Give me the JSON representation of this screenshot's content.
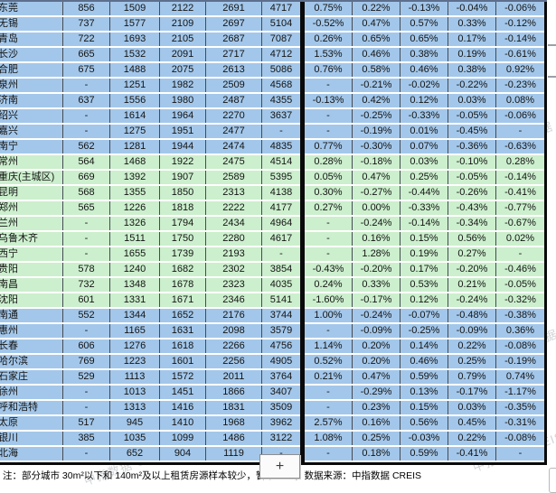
{
  "colors": {
    "row_blue": "#a3c7ea",
    "row_green": "#ccefcd",
    "section_border": "#0a0a0a",
    "gridline": "#454b54"
  },
  "watermark": {
    "text": "中指数据 CREIS"
  },
  "controls": {
    "zoom_in_label": "+"
  },
  "note": {
    "prefix": "注：部分城市 30m²以下和 140m²及以上租赁房源样本较少，暂不",
    "suffix": "，数据来源：中指数据 CREIS"
  },
  "table": {
    "rows": [
      {
        "city": "东莞",
        "group": "blue",
        "values": [
          "856",
          "1509",
          "2122",
          "2691",
          "4717"
        ],
        "changes": [
          "0.75%",
          "0.22%",
          "-0.13%",
          "-0.04%",
          "-0.06%"
        ]
      },
      {
        "city": "无锡",
        "group": "blue",
        "values": [
          "737",
          "1577",
          "2109",
          "2697",
          "5104"
        ],
        "changes": [
          "-0.52%",
          "0.47%",
          "0.57%",
          "0.33%",
          "-0.12%"
        ]
      },
      {
        "city": "青岛",
        "group": "blue",
        "values": [
          "722",
          "1693",
          "2105",
          "2687",
          "7087"
        ],
        "changes": [
          "0.26%",
          "0.65%",
          "0.65%",
          "0.17%",
          "-0.14%"
        ]
      },
      {
        "city": "长沙",
        "group": "blue",
        "values": [
          "665",
          "1532",
          "2091",
          "2717",
          "4712"
        ],
        "changes": [
          "1.53%",
          "0.46%",
          "0.38%",
          "0.19%",
          "-0.61%"
        ]
      },
      {
        "city": "合肥",
        "group": "blue",
        "values": [
          "675",
          "1488",
          "2075",
          "2613",
          "5086"
        ],
        "changes": [
          "0.76%",
          "0.58%",
          "0.46%",
          "0.38%",
          "0.92%"
        ]
      },
      {
        "city": "泉州",
        "group": "blue",
        "values": [
          "-",
          "1251",
          "1982",
          "2509",
          "4568"
        ],
        "changes": [
          "-",
          "-0.21%",
          "-0.02%",
          "-0.22%",
          "-0.23%"
        ]
      },
      {
        "city": "济南",
        "group": "blue",
        "values": [
          "637",
          "1556",
          "1980",
          "2487",
          "4355"
        ],
        "changes": [
          "-0.13%",
          "0.42%",
          "0.12%",
          "0.03%",
          "0.08%"
        ]
      },
      {
        "city": "绍兴",
        "group": "blue",
        "values": [
          "-",
          "1614",
          "1964",
          "2270",
          "3637"
        ],
        "changes": [
          "-",
          "-0.25%",
          "-0.33%",
          "-0.05%",
          "-0.06%"
        ]
      },
      {
        "city": "嘉兴",
        "group": "blue",
        "values": [
          "-",
          "1275",
          "1951",
          "2477",
          "-"
        ],
        "changes": [
          "-",
          "-0.19%",
          "0.01%",
          "-0.45%",
          "-"
        ]
      },
      {
        "city": "南宁",
        "group": "blue",
        "values": [
          "562",
          "1281",
          "1944",
          "2474",
          "4835"
        ],
        "changes": [
          "0.77%",
          "-0.30%",
          "0.07%",
          "-0.36%",
          "-0.63%"
        ]
      },
      {
        "city": "常州",
        "group": "green",
        "values": [
          "564",
          "1468",
          "1922",
          "2475",
          "4514"
        ],
        "changes": [
          "0.28%",
          "-0.18%",
          "0.03%",
          "-0.10%",
          "0.28%"
        ]
      },
      {
        "city": "重庆(主城区)",
        "group": "green",
        "values": [
          "669",
          "1392",
          "1907",
          "2589",
          "5395"
        ],
        "changes": [
          "0.05%",
          "0.47%",
          "0.25%",
          "-0.05%",
          "-0.14%"
        ]
      },
      {
        "city": "昆明",
        "group": "green",
        "values": [
          "568",
          "1355",
          "1850",
          "2313",
          "4138"
        ],
        "changes": [
          "0.30%",
          "-0.27%",
          "-0.44%",
          "-0.26%",
          "-0.41%"
        ]
      },
      {
        "city": "郑州",
        "group": "green",
        "values": [
          "565",
          "1226",
          "1818",
          "2222",
          "4177"
        ],
        "changes": [
          "0.27%",
          "0.00%",
          "-0.33%",
          "-0.43%",
          "-0.77%"
        ]
      },
      {
        "city": "兰州",
        "group": "green",
        "values": [
          "-",
          "1326",
          "1794",
          "2434",
          "4964"
        ],
        "changes": [
          "-",
          "-0.24%",
          "-0.14%",
          "-0.34%",
          "-0.67%"
        ]
      },
      {
        "city": "乌鲁木齐",
        "group": "green",
        "values": [
          "-",
          "1511",
          "1750",
          "2280",
          "4617"
        ],
        "changes": [
          "-",
          "0.16%",
          "0.15%",
          "0.56%",
          "0.02%"
        ]
      },
      {
        "city": "西宁",
        "group": "green",
        "values": [
          "-",
          "1655",
          "1739",
          "2193",
          "-"
        ],
        "changes": [
          "-",
          "1.28%",
          "0.19%",
          "0.27%",
          "-"
        ]
      },
      {
        "city": "贵阳",
        "group": "green",
        "values": [
          "578",
          "1240",
          "1682",
          "2302",
          "3854"
        ],
        "changes": [
          "-0.43%",
          "-0.20%",
          "0.17%",
          "-0.20%",
          "-0.46%"
        ]
      },
      {
        "city": "南昌",
        "group": "green",
        "values": [
          "732",
          "1348",
          "1678",
          "2323",
          "4035"
        ],
        "changes": [
          "0.24%",
          "0.33%",
          "0.53%",
          "0.21%",
          "-0.05%"
        ]
      },
      {
        "city": "沈阳",
        "group": "green",
        "values": [
          "601",
          "1331",
          "1671",
          "2346",
          "5141"
        ],
        "changes": [
          "-1.60%",
          "-0.17%",
          "0.12%",
          "-0.24%",
          "-0.32%"
        ]
      },
      {
        "city": "南通",
        "group": "blue",
        "values": [
          "552",
          "1344",
          "1652",
          "2176",
          "3744"
        ],
        "changes": [
          "1.00%",
          "-0.24%",
          "-0.07%",
          "-0.48%",
          "-0.38%"
        ]
      },
      {
        "city": "惠州",
        "group": "blue",
        "values": [
          "-",
          "1165",
          "1631",
          "2098",
          "3579"
        ],
        "changes": [
          "-",
          "-0.09%",
          "-0.25%",
          "-0.09%",
          "0.36%"
        ]
      },
      {
        "city": "长春",
        "group": "blue",
        "values": [
          "606",
          "1276",
          "1618",
          "2266",
          "4756"
        ],
        "changes": [
          "1.14%",
          "0.20%",
          "0.14%",
          "0.22%",
          "-0.08%"
        ]
      },
      {
        "city": "哈尔滨",
        "group": "blue",
        "values": [
          "769",
          "1223",
          "1601",
          "2256",
          "4905"
        ],
        "changes": [
          "0.52%",
          "0.20%",
          "0.46%",
          "0.25%",
          "-0.19%"
        ]
      },
      {
        "city": "石家庄",
        "group": "blue",
        "values": [
          "529",
          "1113",
          "1572",
          "2011",
          "3764"
        ],
        "changes": [
          "0.21%",
          "0.47%",
          "0.59%",
          "0.79%",
          "0.74%"
        ]
      },
      {
        "city": "徐州",
        "group": "blue",
        "values": [
          "-",
          "1013",
          "1451",
          "1866",
          "3407"
        ],
        "changes": [
          "-",
          "-0.29%",
          "0.13%",
          "-0.17%",
          "-1.17%"
        ]
      },
      {
        "city": "呼和浩特",
        "group": "blue",
        "values": [
          "-",
          "1313",
          "1416",
          "1831",
          "3509"
        ],
        "changes": [
          "-",
          "0.23%",
          "0.15%",
          "0.03%",
          "-0.35%"
        ]
      },
      {
        "city": "太原",
        "group": "blue",
        "values": [
          "517",
          "945",
          "1410",
          "1968",
          "3962"
        ],
        "changes": [
          "2.57%",
          "0.16%",
          "0.56%",
          "0.45%",
          "-0.31%"
        ]
      },
      {
        "city": "银川",
        "group": "blue",
        "values": [
          "385",
          "1035",
          "1099",
          "1486",
          "3122"
        ],
        "changes": [
          "1.08%",
          "0.25%",
          "-0.03%",
          "0.22%",
          "-0.08%"
        ]
      },
      {
        "city": "北海",
        "group": "blue",
        "values": [
          "-",
          "652",
          "904",
          "1119",
          "-"
        ],
        "changes": [
          "-",
          "0.18%",
          "0.59%",
          "-0.41%",
          "-"
        ]
      }
    ]
  }
}
